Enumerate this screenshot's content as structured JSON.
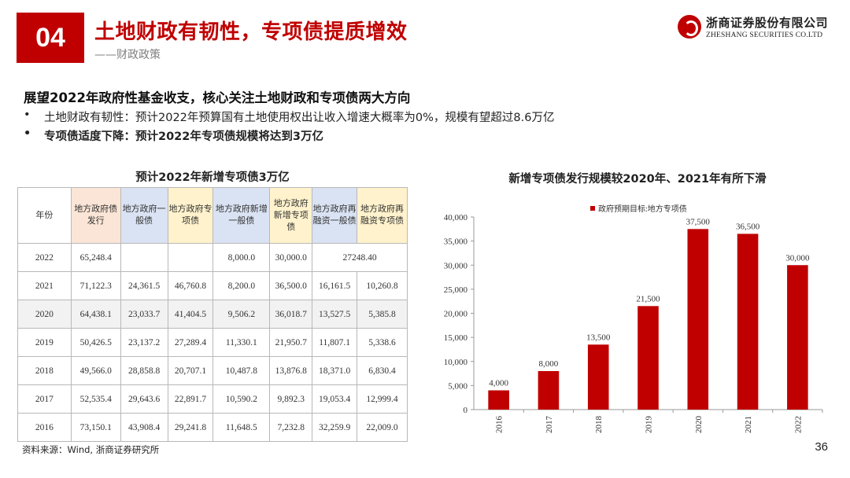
{
  "header": {
    "section_number": "04",
    "title": "土地财政有韧性，专项债提质增效",
    "subtitle": "——财政政策",
    "logo_cn": "浙商证券股份有限公司",
    "logo_en": "ZHESHANG SECURITIES CO.LTD"
  },
  "body": {
    "headline": "展望2022年政府性基金收支，核心关注土地财政和专项债两大方向",
    "bullets": [
      {
        "marker": "•",
        "text": "土地财政有韧性：预计2022年预算国有土地使用权出让收入增速大概率为0%，规模有望超过8.6万亿"
      },
      {
        "marker": "•",
        "text": "专项债适度下降：预计2022年专项债规模将达到3万亿"
      }
    ]
  },
  "table": {
    "title": "预计2022年新增专项债3万亿",
    "headers": [
      "年份",
      "地方政府债发行",
      "地方政府一般债",
      "地方政府专项债",
      "地方政府新增一般债",
      "地方政府新增专项债",
      "地方政府再融资一般债",
      "地方政府再融资专项债"
    ],
    "rows": [
      [
        "2022",
        "65,248.4",
        "",
        "",
        "8,000.0",
        "30,000.0",
        "27248.40"
      ],
      [
        "2021",
        "71,122.3",
        "24,361.5",
        "46,760.8",
        "8,200.0",
        "36,500.0",
        "16,161.5",
        "10,260.8"
      ],
      [
        "2020",
        "64,438.1",
        "23,033.7",
        "41,404.5",
        "9,506.2",
        "36,018.7",
        "13,527.5",
        "5,385.8"
      ],
      [
        "2019",
        "50,426.5",
        "23,137.2",
        "27,289.4",
        "11,330.1",
        "21,950.7",
        "11,807.1",
        "5,338.6"
      ],
      [
        "2018",
        "49,566.0",
        "28,858.8",
        "20,707.1",
        "10,487.8",
        "13,876.8",
        "18,371.0",
        "6,830.4"
      ],
      [
        "2017",
        "52,535.4",
        "29,643.6",
        "22,891.7",
        "10,590.2",
        "9,892.3",
        "19,053.4",
        "12,999.4"
      ],
      [
        "2016",
        "73,150.1",
        "43,908.4",
        "29,241.8",
        "11,648.5",
        "7,232.8",
        "32,259.9",
        "22,009.0"
      ]
    ]
  },
  "chart_data": {
    "type": "bar",
    "title": "新增专项债发行规模较2020年、2021年有所下滑",
    "categories": [
      "2016",
      "2017",
      "2018",
      "2019",
      "2020",
      "2021",
      "2022"
    ],
    "series": [
      {
        "name": "政府预期目标:地方专项债",
        "values": [
          4000,
          8000,
          13500,
          21500,
          37500,
          36500,
          30000
        ],
        "color": "#c00000"
      }
    ],
    "data_labels": [
      "4,000",
      "8,000",
      "13,500",
      "21,500",
      "37,500",
      "36,500",
      "30,000"
    ],
    "y_ticks": [
      "0",
      "5,000",
      "10,000",
      "15,000",
      "20,000",
      "25,000",
      "30,000",
      "35,000",
      "40,000"
    ],
    "ylim": [
      0,
      40000
    ],
    "legend_position": "top",
    "grid": false
  },
  "footer": {
    "source": "资料来源：Wind, 浙商证券研究所",
    "page_number": "36"
  }
}
